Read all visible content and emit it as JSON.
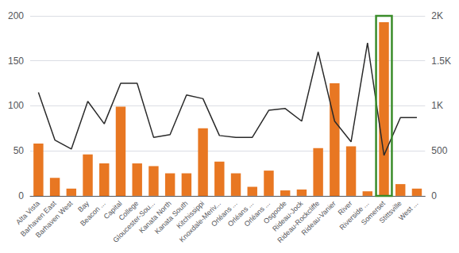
{
  "chart_data": {
    "type": "bar",
    "categories": [
      "Alta Vista",
      "Barhaven East",
      "Barhaven West",
      "Bay",
      "Beacon ...",
      "Capital",
      "College",
      "Gloucester-Sou...",
      "Kanata North",
      "Kanata South",
      "Kitchissippi",
      "Knoxdale-Meriv...",
      "Orléans ...",
      "Orléans ...",
      "Orléans ...",
      "Osgoode",
      "Rideau-Jock",
      "Rideau-Rockcliffe",
      "Rideau-Vanier",
      "River",
      "Riverside ...",
      "Somerset",
      "Stittsville",
      "West ..."
    ],
    "series": [
      {
        "type": "bar",
        "color": "#E87722",
        "values": [
          58,
          20,
          8,
          46,
          36,
          99,
          36,
          33,
          25,
          25,
          75,
          38,
          25,
          10,
          28,
          6,
          7,
          53,
          125,
          55,
          5,
          193,
          13,
          8
        ]
      },
      {
        "type": "line",
        "color": "#2A2A2A",
        "axis": "y2",
        "values": [
          1150,
          620,
          520,
          1050,
          800,
          1250,
          1250,
          650,
          680,
          1120,
          1080,
          670,
          650,
          650,
          950,
          970,
          830,
          1600,
          830,
          600,
          1700,
          450,
          870,
          870
        ]
      }
    ],
    "ylim": [
      0,
      200
    ],
    "yticks": [
      0,
      50,
      100,
      150,
      200
    ],
    "y2lim": [
      0,
      2000
    ],
    "y2ticks": [
      0,
      500,
      {
        "value": 1000,
        "label": "1K"
      },
      {
        "value": 1500,
        "label": "1.5K"
      },
      {
        "value": 2000,
        "label": "2K"
      }
    ],
    "grid": true,
    "annotations": [
      {
        "type": "rect",
        "x": "Somerset",
        "color": "#3A8C2A"
      }
    ]
  }
}
